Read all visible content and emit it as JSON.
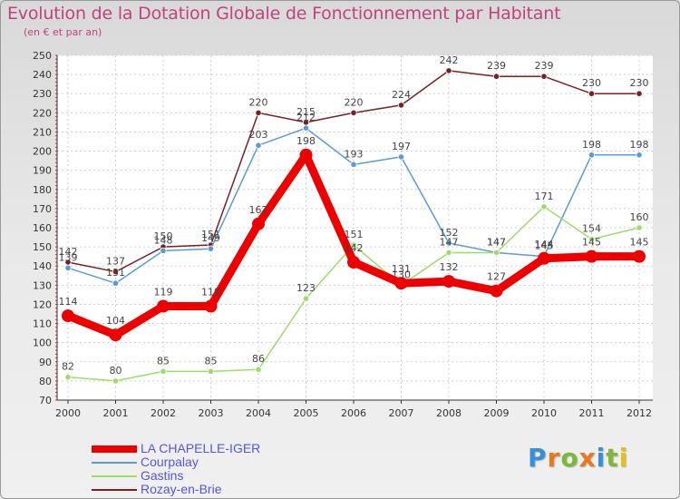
{
  "title": "Evolution de la Dotation Globale de Fonctionnement par Habitant",
  "subtitle": "(en € et par an)",
  "logo": {
    "letters": [
      "P",
      "r",
      "o",
      "x",
      "i",
      "t",
      "i"
    ],
    "colors": [
      "#3b8fd8",
      "#e8791d",
      "#7db83a",
      "#e8791d",
      "#3b8fd8",
      "#7db83a",
      "#e2c11a"
    ]
  },
  "chart_data": {
    "type": "line",
    "x": [
      "2000",
      "2001",
      "2002",
      "2003",
      "2004",
      "2005",
      "2006",
      "2007",
      "2008",
      "2009",
      "2010",
      "2011",
      "2012"
    ],
    "ylim": [
      70,
      250
    ],
    "yticks": [
      "70",
      "80",
      "90",
      "100",
      "110",
      "120",
      "130",
      "140",
      "150",
      "160",
      "170",
      "180",
      "190",
      "200",
      "210",
      "220",
      "230",
      "240",
      "250"
    ],
    "grid": true,
    "legend_position": "bottom-left",
    "series": [
      {
        "name": "Rozay-en-Brie",
        "color": "#7a1f22",
        "values": [
          142,
          137,
          150,
          151,
          220,
          215,
          220,
          224,
          242,
          239,
          239,
          230,
          230
        ]
      },
      {
        "name": "Courpalay",
        "color": "#5b9bd5",
        "values": [
          139,
          131,
          148,
          149,
          203,
          212,
          193,
          197,
          152,
          147,
          145,
          198,
          198
        ]
      },
      {
        "name": "Gastins",
        "color": "#9cdc6a",
        "values": [
          82,
          80,
          85,
          85,
          86,
          123,
          151,
          130,
          147,
          147,
          171,
          154,
          160
        ]
      },
      {
        "name": "LA CHAPELLE-IGER",
        "color": "#ee0000",
        "values": [
          114,
          104,
          119,
          119,
          162,
          198,
          142,
          131,
          132,
          127,
          144,
          145,
          145
        ]
      }
    ]
  }
}
